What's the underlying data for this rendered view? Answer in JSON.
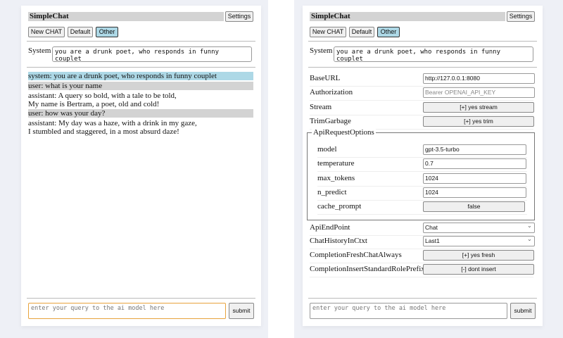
{
  "app_title": "SimpleChat",
  "settings_label": "Settings",
  "buttons": {
    "new_chat": "New CHAT",
    "default": "Default",
    "other": "Other"
  },
  "system_label": "System",
  "system_prompt": "you are a drunk poet, who responds in funny couplet",
  "messages": [
    {
      "role": "system",
      "lines": [
        "system: you are a drunk poet, who responds in funny couplet"
      ]
    },
    {
      "role": "user",
      "lines": [
        "user: what is your name"
      ]
    },
    {
      "role": "assistant",
      "lines": [
        "assistant: A query so bold, with a tale to be told,",
        "My name is Bertram, a poet, old and cold!"
      ]
    },
    {
      "role": "user",
      "lines": [
        "user: how was your day?"
      ]
    },
    {
      "role": "assistant",
      "lines": [
        "assistant: My day was a haze, with a drink in my gaze,",
        "I stumbled and staggered, in a most absurd daze!"
      ]
    }
  ],
  "query_placeholder": "enter your query to the ai model here",
  "submit_label": "submit",
  "settings": {
    "base_url": {
      "label": "BaseURL",
      "value": "http://127.0.0.1:8080"
    },
    "authorization": {
      "label": "Authorization",
      "placeholder": "Bearer OPENAI_API_KEY"
    },
    "stream": {
      "label": "Stream",
      "value": "[+] yes stream"
    },
    "trim_garbage": {
      "label": "TrimGarbage",
      "value": "[+] yes trim"
    },
    "api_request_options": {
      "legend": "ApiRequestOptions",
      "model": {
        "label": "model",
        "value": "gpt-3.5-turbo"
      },
      "temperature": {
        "label": "temperature",
        "value": "0.7"
      },
      "max_tokens": {
        "label": "max_tokens",
        "value": "1024"
      },
      "n_predict": {
        "label": "n_predict",
        "value": "1024"
      },
      "cache_prompt": {
        "label": "cache_prompt",
        "value": "false"
      }
    },
    "api_endpoint": {
      "label": "ApiEndPoint",
      "value": "Chat"
    },
    "chat_history": {
      "label": "ChatHistoryInCtxt",
      "value": "Last1"
    },
    "fresh_chat": {
      "label": "CompletionFreshChatAlways",
      "value": "[+] yes fresh"
    },
    "insert_prefix": {
      "label": "CompletionInsertStandardRolePrefix",
      "value": "[-] dont insert"
    }
  },
  "colors": {
    "system_bg": "#add8e6",
    "user_bg": "#d3d3d3",
    "active_button": "#add8e6",
    "focus_border": "#e8a33d"
  }
}
